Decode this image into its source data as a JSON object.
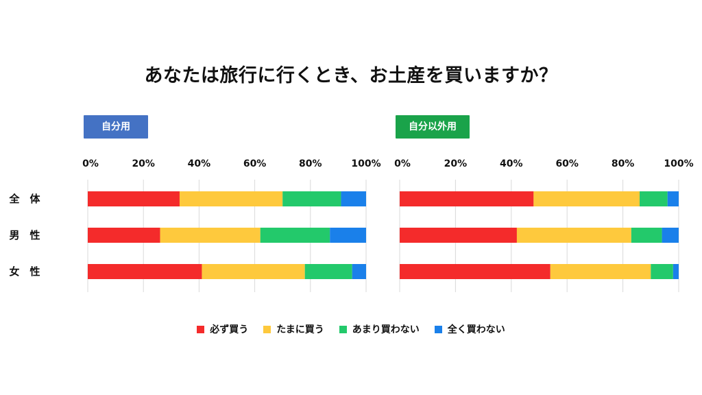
{
  "title": "あなたは旅行に行くとき、お土産を買いますか？",
  "colors": {
    "必ず買う": "#f42b2b",
    "たまに買う": "#fec93d",
    "あまり買わない": "#23c96b",
    "全く買わない": "#1a80ea",
    "badge_self": "#4472c4",
    "badge_other": "#1aa34a"
  },
  "chart_data": [
    {
      "type": "bar",
      "orientation": "horizontal",
      "stacked": true,
      "panel_label": "自分用",
      "categories": [
        "全　体",
        "男　性",
        "女　性"
      ],
      "xlim": [
        0,
        100
      ],
      "xticks": [
        "0%",
        "20%",
        "40%",
        "60%",
        "80%",
        "100%"
      ],
      "series": [
        {
          "name": "必ず買う",
          "values": [
            33,
            26,
            41
          ]
        },
        {
          "name": "たまに買う",
          "values": [
            37,
            36,
            37
          ]
        },
        {
          "name": "あまり買わない",
          "values": [
            21,
            25,
            17
          ]
        },
        {
          "name": "全く買わない",
          "values": [
            9,
            13,
            5
          ]
        }
      ],
      "legend": "bottom",
      "grid": true
    },
    {
      "type": "bar",
      "orientation": "horizontal",
      "stacked": true,
      "panel_label": "自分以外用",
      "categories": [
        "全　体",
        "男　性",
        "女　性"
      ],
      "xlim": [
        0,
        100
      ],
      "xticks": [
        "0%",
        "20%",
        "40%",
        "60%",
        "80%",
        "100%"
      ],
      "series": [
        {
          "name": "必ず買う",
          "values": [
            48,
            42,
            54
          ]
        },
        {
          "name": "たまに買う",
          "values": [
            38,
            41,
            36
          ]
        },
        {
          "name": "あまり買わない",
          "values": [
            10,
            11,
            8
          ]
        },
        {
          "name": "全く買わない",
          "values": [
            4,
            6,
            2
          ]
        }
      ],
      "legend": "bottom",
      "grid": true
    }
  ]
}
